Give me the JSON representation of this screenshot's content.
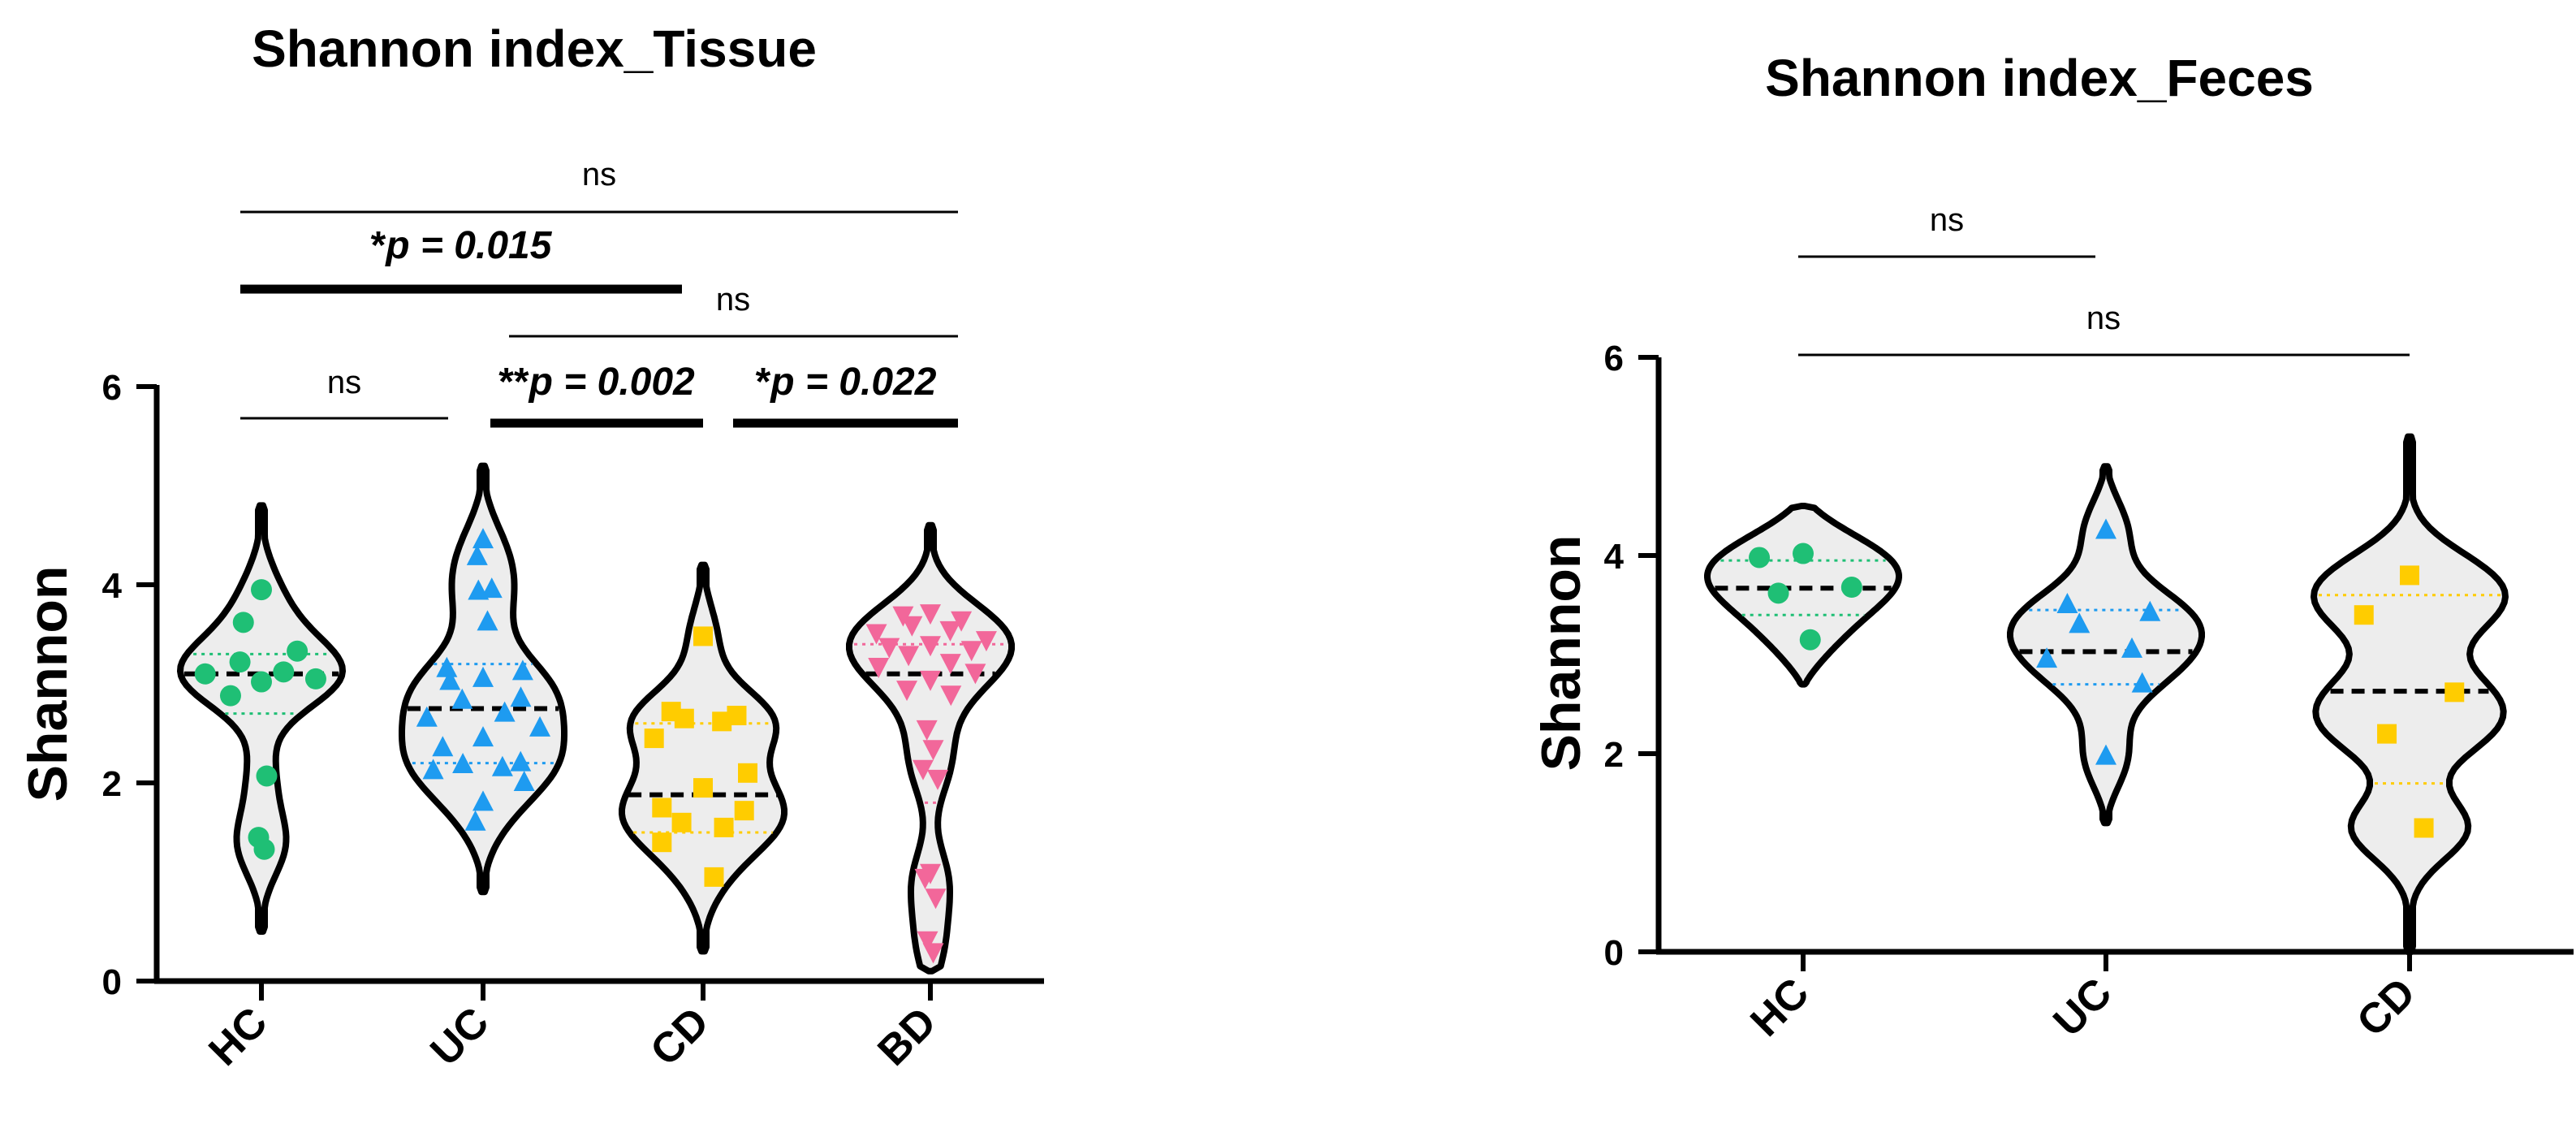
{
  "chart_data": [
    {
      "type": "violin",
      "title": "Shannon index_Tissue",
      "ylabel": "Shannon",
      "ylim": [
        0,
        6
      ],
      "yticks": [
        "0",
        "2",
        "4",
        "6"
      ],
      "categories": [
        "HC",
        "UC",
        "CD",
        "BD"
      ],
      "series": [
        {
          "category": "HC",
          "color": "#1FBF75",
          "marker": "circle",
          "median": 3.1,
          "q1": 2.7,
          "q3": 3.3,
          "min": 0.5,
          "max": 4.8,
          "values": [
            3.95,
            3.62,
            3.33,
            3.22,
            3.12,
            3.1,
            3.05,
            3.02,
            2.88,
            2.07,
            1.45,
            1.33
          ]
        },
        {
          "category": "UC",
          "color": "#1E9BF0",
          "marker": "triangle-up",
          "median": 2.75,
          "q1": 2.2,
          "q3": 3.2,
          "min": 0.9,
          "max": 5.2,
          "values": [
            4.45,
            4.28,
            3.95,
            3.93,
            3.62,
            3.15,
            3.12,
            3.05,
            3.02,
            2.85,
            2.83,
            2.7,
            2.65,
            2.55,
            2.45,
            2.35,
            2.2,
            2.18,
            2.15,
            2.12,
            2.0,
            1.8,
            1.6
          ]
        },
        {
          "category": "CD",
          "color": "#FFCC00",
          "marker": "square",
          "median": 1.88,
          "q1": 1.5,
          "q3": 2.6,
          "min": 0.3,
          "max": 4.2,
          "values": [
            3.48,
            2.72,
            2.68,
            2.65,
            2.62,
            2.45,
            2.1,
            1.95,
            1.75,
            1.72,
            1.6,
            1.55,
            1.4,
            1.05
          ]
        },
        {
          "category": "BD",
          "color": "#F2679A",
          "marker": "triangle-down",
          "median": 3.1,
          "q1": 1.8,
          "q3": 3.4,
          "min": 0.1,
          "max": 4.6,
          "values": [
            3.72,
            3.7,
            3.65,
            3.6,
            3.55,
            3.52,
            3.45,
            3.4,
            3.38,
            3.35,
            3.3,
            3.22,
            3.18,
            3.12,
            3.05,
            2.95,
            2.9,
            2.55,
            2.35,
            2.15,
            2.05,
            1.1,
            1.05,
            0.85,
            0.42,
            0.3
          ]
        }
      ],
      "comparisons": [
        {
          "from": "HC",
          "to": "UC",
          "label": "ns",
          "emphasis": false
        },
        {
          "from": "UC",
          "to": "CD",
          "stars": "**",
          "p_value": "p = 0.002",
          "emphasis": true
        },
        {
          "from": "CD",
          "to": "BD",
          "stars": "*",
          "p_value": "p = 0.022",
          "emphasis": true
        },
        {
          "from": "HC",
          "to": "CD",
          "stars": "*",
          "p_value": "p = 0.015",
          "emphasis": true
        },
        {
          "from": "UC",
          "to": "BD",
          "label": "ns",
          "emphasis": false
        },
        {
          "from": "HC",
          "to": "BD",
          "label": "ns",
          "emphasis": false
        }
      ]
    },
    {
      "type": "violin",
      "title": "Shannon index_Feces",
      "ylabel": "Shannon",
      "ylim": [
        0,
        6
      ],
      "yticks": [
        "0",
        "2",
        "4",
        "6"
      ],
      "categories": [
        "HC",
        "UC",
        "CD"
      ],
      "series": [
        {
          "category": "HC",
          "color": "#1FBF75",
          "marker": "circle",
          "median": 3.67,
          "q1": 3.4,
          "q3": 3.95,
          "min": 2.7,
          "max": 4.5,
          "values": [
            4.02,
            3.98,
            3.68,
            3.62,
            3.15
          ]
        },
        {
          "category": "UC",
          "color": "#1E9BF0",
          "marker": "triangle-up",
          "median": 3.03,
          "q1": 2.7,
          "q3": 3.45,
          "min": 1.3,
          "max": 4.9,
          "values": [
            4.25,
            3.5,
            3.42,
            3.3,
            3.05,
            2.95,
            2.7,
            1.97
          ]
        },
        {
          "category": "CD",
          "color": "#FFCC00",
          "marker": "square",
          "median": 2.63,
          "q1": 1.7,
          "q3": 3.6,
          "min": 0.0,
          "max": 5.2,
          "values": [
            3.8,
            3.4,
            2.62,
            2.2,
            1.25
          ]
        }
      ],
      "comparisons": [
        {
          "from": "HC",
          "to": "UC",
          "label": "ns",
          "emphasis": false
        },
        {
          "from": "HC",
          "to": "CD",
          "label": "ns",
          "emphasis": false
        }
      ]
    }
  ]
}
